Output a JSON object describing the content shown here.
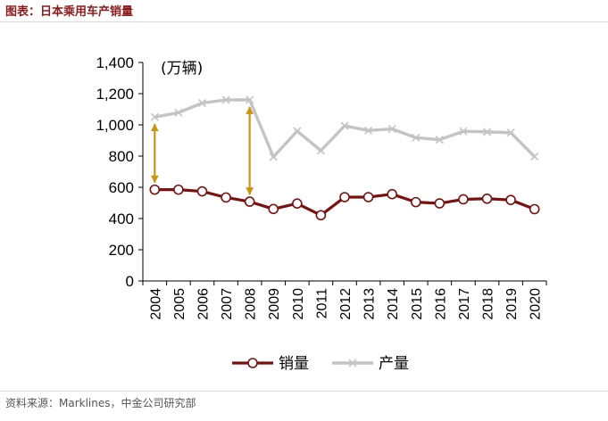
{
  "header": {
    "title": "图表：日本乘用车产销量"
  },
  "footer": {
    "source": "资料来源：Marklines，中金公司研究部"
  },
  "colors": {
    "sales": "#7b1010",
    "production": "#c4c4c4",
    "arrow": "#c8960f",
    "title": "#8b1a1a"
  },
  "chart_data": {
    "type": "line",
    "ylabel": "(万辆)",
    "ylim": [
      0,
      1400
    ],
    "yticks": [
      0,
      200,
      400,
      600,
      800,
      1000,
      1200,
      1400
    ],
    "ytick_labels": [
      "0",
      "200",
      "400",
      "600",
      "800",
      "1,000",
      "1,200",
      "1,400"
    ],
    "categories": [
      "2004",
      "2005",
      "2006",
      "2007",
      "2008",
      "2009",
      "2010",
      "2011",
      "2012",
      "2013",
      "2014",
      "2015",
      "2016",
      "2017",
      "2018",
      "2019",
      "2020"
    ],
    "series": [
      {
        "name": "销量",
        "marker": "circle",
        "color": "#7b1010",
        "values": [
          585,
          585,
          574,
          535,
          508,
          461,
          496,
          421,
          537,
          537,
          556,
          505,
          497,
          523,
          527,
          519,
          460
        ]
      },
      {
        "name": "产量",
        "marker": "x",
        "color": "#c4c4c4",
        "values": [
          1050,
          1078,
          1140,
          1160,
          1160,
          795,
          960,
          835,
          994,
          964,
          974,
          918,
          905,
          959,
          955,
          950,
          797
        ]
      }
    ],
    "annotations": [
      {
        "type": "double-arrow",
        "category": "2004",
        "from": 585,
        "to": 1050
      },
      {
        "type": "double-arrow",
        "category": "2008",
        "from": 508,
        "to": 1160
      }
    ],
    "grid": false,
    "legend": "bottom"
  }
}
